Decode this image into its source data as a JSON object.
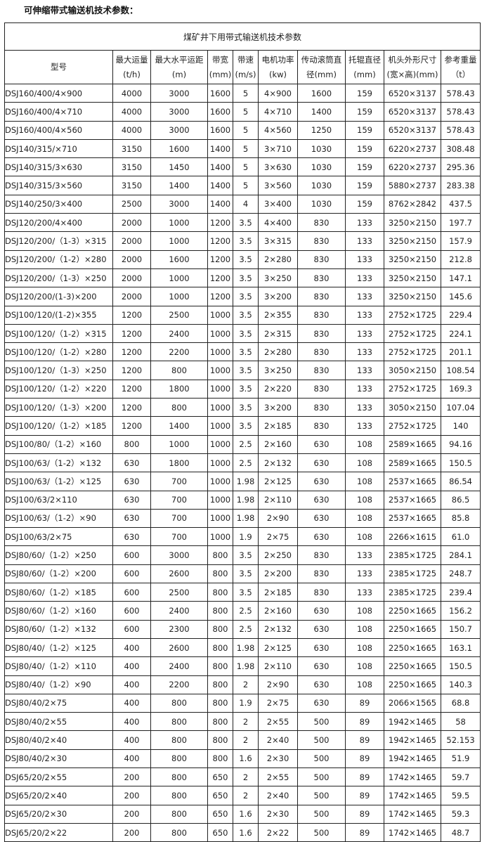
{
  "heading": "可伸缩带式输送机技术参数：",
  "table": {
    "title": "煤矿井下用带式输送机技术参数",
    "headers": [
      [
        "型号",
        ""
      ],
      [
        "最大运量",
        "(t/h)"
      ],
      [
        "最大水平运距",
        "(m)"
      ],
      [
        "带宽",
        "(mm)"
      ],
      [
        "带速",
        "(m/s)"
      ],
      [
        "电机功率",
        "(kw)"
      ],
      [
        "传动滚筒直",
        "径(mm)"
      ],
      [
        "托辊直径",
        "(mm)"
      ],
      [
        "机头外形尺寸",
        "(宽×高)(mm)"
      ],
      [
        "参考重量",
        "（t）"
      ]
    ],
    "rows": [
      [
        "DSJ160/400/4×900",
        "4000",
        "3000",
        "1600",
        "5",
        "4×900",
        "1600",
        "159",
        "6520×3137",
        "578.43"
      ],
      [
        "DSJ160/400/4×710",
        "4000",
        "3000",
        "1600",
        "5",
        "4×710",
        "1400",
        "159",
        "6520×3137",
        "578.43"
      ],
      [
        "DSJ160/400/4×560",
        "4000",
        "3000",
        "1600",
        "5",
        "4×560",
        "1250",
        "159",
        "6520×3137",
        "578.43"
      ],
      [
        "DSJ140/315/×710",
        "3150",
        "1600",
        "1400",
        "5",
        "3×710",
        "1030",
        "159",
        "6220×2737",
        "308.48"
      ],
      [
        "DSJ140/315/3×630",
        "3150",
        "1450",
        "1400",
        "5",
        "3×630",
        "1030",
        "159",
        "6220×2737",
        "295.36"
      ],
      [
        "DSJ140/315/3×560",
        "3150",
        "1400",
        "1400",
        "5",
        "3×560",
        "1030",
        "159",
        "5880×2737",
        "283.38"
      ],
      [
        "DSJ140/250/3×400",
        "2500",
        "3000",
        "1400",
        "4",
        "3×400",
        "1030",
        "159",
        "8762×2842",
        "437.5"
      ],
      [
        "DSJ120/200/4×400",
        "2000",
        "1000",
        "1200",
        "3.5",
        "4×400",
        "830",
        "133",
        "3250×2150",
        "197.7"
      ],
      [
        "DSJ120/200/（1-3）×315",
        "2000",
        "1000",
        "1200",
        "3.5",
        "3×315",
        "830",
        "133",
        "3250×2150",
        "157.9"
      ],
      [
        "DSJ120/200/（1-2）×280",
        "2000",
        "1600",
        "1200",
        "3.5",
        "2×280",
        "830",
        "133",
        "3250×2150",
        "212.8"
      ],
      [
        "DSJ120/200/（1-3）×250",
        "2000",
        "1000",
        "1200",
        "3.5",
        "3×250",
        "830",
        "133",
        "3250×2150",
        "147.1"
      ],
      [
        "DSJ120/200/(1-3)×200",
        "2000",
        "1000",
        "1200",
        "3.5",
        "3×200",
        "830",
        "133",
        "3250×2150",
        "145.6"
      ],
      [
        "DSJ100/120/(1-2)×355",
        "1200",
        "2500",
        "1000",
        "3.5",
        "2×355",
        "830",
        "133",
        "2752×1725",
        "229.4"
      ],
      [
        "DSJ100/120/（1-2）×315",
        "1200",
        "2400",
        "1000",
        "3.5",
        "2×315",
        "830",
        "133",
        "2752×1725",
        "224.1"
      ],
      [
        "DSJ100/120/（1-2）×280",
        "1200",
        "2200",
        "1000",
        "3.5",
        "2×280",
        "830",
        "133",
        "2752×1725",
        "201.1"
      ],
      [
        "DSJ100/120/（1-3）×250",
        "1200",
        "800",
        "1000",
        "3.5",
        "3×250",
        "830",
        "133",
        "3050×2150",
        "108.54"
      ],
      [
        "DSJ100/120/（1-2）×220",
        "1200",
        "1800",
        "1000",
        "3.5",
        "2×220",
        "830",
        "133",
        "2752×1725",
        "169.3"
      ],
      [
        "DSJ100/120/（1-3）×200",
        "1200",
        "800",
        "1000",
        "3.5",
        "3×200",
        "830",
        "133",
        "3050×2150",
        "107.04"
      ],
      [
        "DSJ100/120/（1-2）×185",
        "1200",
        "1400",
        "1000",
        "3.5",
        "2×185",
        "830",
        "133",
        "2752×1725",
        "140"
      ],
      [
        "DSJ100/80/（1-2）×160",
        "800",
        "1000",
        "1000",
        "2.5",
        "2×160",
        "630",
        "108",
        "2589×1665",
        "94.16"
      ],
      [
        "DSJ100/63/（1-2）×132",
        "630",
        "1800",
        "1000",
        "2.5",
        "2×132",
        "630",
        "108",
        "2589×1665",
        "150.5"
      ],
      [
        "DSJ100/63/（1-2）×125",
        "630",
        "700",
        "1000",
        "1.98",
        "2×125",
        "630",
        "108",
        "2537×1665",
        "86.54"
      ],
      [
        "DSJ100/63/2×110",
        "630",
        "700",
        "1000",
        "1.98",
        "2×110",
        "630",
        "108",
        "2537×1665",
        "86.5"
      ],
      [
        "DSJ100/63/（1-2）×90",
        "630",
        "700",
        "1000",
        "1.98",
        "2×90",
        "630",
        "108",
        "2537×1665",
        "85.8"
      ],
      [
        "DSJ100/63/2×75",
        "630",
        "700",
        "1000",
        "1.9",
        "2×75",
        "630",
        "108",
        "2266×1615",
        "61.0"
      ],
      [
        "DSJ80/60/（1-2）×250",
        "600",
        "3000",
        "800",
        "3.5",
        "2×250",
        "830",
        "133",
        "2385×1725",
        "284.1"
      ],
      [
        "DSJ80/60/（1-2）×200",
        "600",
        "2600",
        "800",
        "3.5",
        "2×200",
        "830",
        "133",
        "2385×1725",
        "248.7"
      ],
      [
        "DSJ80/60/（1-2）×185",
        "600",
        "2500",
        "800",
        "3.5",
        "2×185",
        "830",
        "133",
        "2385×1725",
        "239.4"
      ],
      [
        "DSJ80/60/（1-2）×160",
        "600",
        "2400",
        "800",
        "2.5",
        "2×160",
        "630",
        "108",
        "2250×1665",
        "156.2"
      ],
      [
        "DSJ80/60/（1-2）×132",
        "600",
        "2300",
        "800",
        "2.5",
        "2×132",
        "630",
        "108",
        "2250×1665",
        "150.7"
      ],
      [
        "DSJ80/40/（1-2）×125",
        "400",
        "2600",
        "800",
        "1.98",
        "2×125",
        "630",
        "108",
        "2250×1665",
        "163.1"
      ],
      [
        "DSJ80/40/（1-2）×110",
        "400",
        "2400",
        "800",
        "1.98",
        "2×110",
        "630",
        "108",
        "2250×1665",
        "150.5"
      ],
      [
        "DSJ80/40/（1-2）×90",
        "400",
        "2200",
        "800",
        "2",
        "2×90",
        "630",
        "108",
        "2250×1665",
        "140.3"
      ],
      [
        "DSJ80/40/2×75",
        "400",
        "800",
        "800",
        "1.9",
        "2×75",
        "630",
        "89",
        "2066×1565",
        "68.8"
      ],
      [
        "DSJ80/40/2×55",
        "400",
        "800",
        "800",
        "2",
        "2×55",
        "500",
        "89",
        "1942×1465",
        "58"
      ],
      [
        "DSJ80/40/2×40",
        "400",
        "800",
        "800",
        "2",
        "2×40",
        "500",
        "89",
        "1942×1465",
        "52.153"
      ],
      [
        "DSJ80/40/2×30",
        "400",
        "800",
        "800",
        "1.6",
        "2×30",
        "500",
        "89",
        "1942×1465",
        "51.9"
      ],
      [
        "DSJ65/20/2×55",
        "200",
        "800",
        "650",
        "2",
        "2×55",
        "500",
        "89",
        "1742×1465",
        "59.7"
      ],
      [
        "DSJ65/20/2×40",
        "200",
        "800",
        "650",
        "2",
        "2×40",
        "500",
        "89",
        "1742×1465",
        "59.5"
      ],
      [
        "DSJ65/20/2×30",
        "200",
        "800",
        "650",
        "1.6",
        "2×30",
        "500",
        "89",
        "1742×1465",
        "59.3"
      ],
      [
        "DSJ65/20/2×22",
        "200",
        "800",
        "650",
        "1.6",
        "2×22",
        "500",
        "89",
        "1742×1465",
        "48.7"
      ]
    ]
  }
}
